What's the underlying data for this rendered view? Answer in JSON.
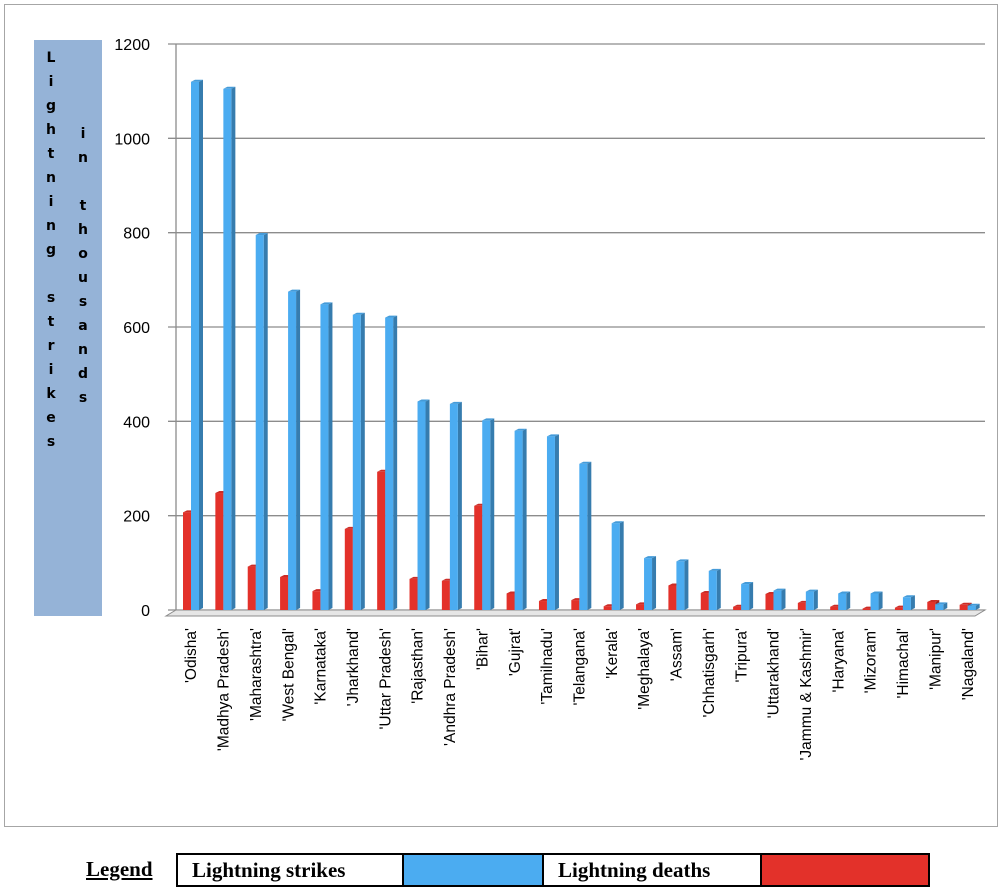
{
  "chart_data": {
    "type": "bar",
    "ylabel": "Lightning strikes in thousands",
    "ylabel_col1": "Lightning strikes",
    "ylabel_col2": "in thousands",
    "ylim": [
      0,
      1200
    ],
    "yticks": [
      0,
      200,
      400,
      600,
      800,
      1000,
      1200
    ],
    "grid": true,
    "categories": [
      "'Odisha'",
      "'Madhya Pradesh'",
      "'Maharashtra'",
      "'West Bengal'",
      "'Karnataka'",
      "'Jharkhand'",
      "'Uttar Pradesh'",
      "'Rajasthan'",
      "'Andhra Pradesh'",
      "'Bihar'",
      "'Gujrat'",
      "'Tamilnadu'",
      "'Telangana'",
      "'Kerala'",
      "'Meghalaya'",
      "'Assam'",
      "'Chhatisgarh'",
      "'Tripura'",
      "'Uttarakhand'",
      "'Jammu & Kashmir'",
      "'Haryana'",
      "'Mizoram'",
      "'Himachal'",
      "'Manipur'",
      "'Nagaland'"
    ],
    "series": [
      {
        "name": "Lightning strikes",
        "color": "#4bacf1",
        "values": [
          1120,
          1105,
          795,
          675,
          648,
          626,
          620,
          442,
          437,
          402,
          380,
          368,
          310,
          184,
          110,
          103,
          83,
          55,
          41,
          39,
          35,
          35,
          27,
          12,
          9
        ]
      },
      {
        "name": "Lightning deaths",
        "color": "#e3312a",
        "values": [
          207,
          248,
          92,
          70,
          40,
          172,
          293,
          66,
          62,
          221,
          35,
          19,
          21,
          8,
          12,
          52,
          36,
          7,
          34,
          15,
          7,
          3,
          5,
          17,
          11
        ]
      }
    ]
  },
  "legend": {
    "title": "Legend",
    "strikes_label": "Lightning strikes",
    "strikes_color": "#4bacf1",
    "deaths_label": "Lightning deaths",
    "deaths_color": "#e3312a"
  }
}
